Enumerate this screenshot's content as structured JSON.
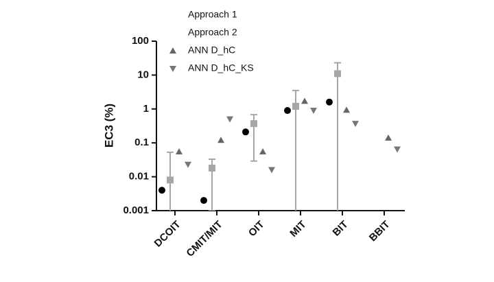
{
  "chart_data": {
    "type": "scatter",
    "y_label": "EC3  (%)",
    "categories": [
      "DCOIT",
      "CMIT/MIT",
      "OIT",
      "MIT",
      "BIT",
      "BBIT"
    ],
    "y_scale": "log",
    "ylim": [
      0.001,
      100
    ],
    "yticks": [
      0.001,
      0.01,
      0.1,
      1,
      10,
      100
    ],
    "legend": "top",
    "series": [
      {
        "name": "Approach 1",
        "color": "#000000",
        "marker": "circle",
        "values": [
          0.004,
          0.002,
          0.21,
          0.9,
          1.6,
          null
        ]
      },
      {
        "name": "Approach 2",
        "color": "#a6a6a6",
        "marker": "square",
        "values": [
          0.008,
          0.018,
          0.37,
          1.2,
          11,
          null
        ],
        "error_low": [
          0.0001,
          0.001,
          0.029,
          0.0001,
          0.0001,
          null
        ],
        "error_high": [
          0.053,
          0.033,
          0.68,
          3.5,
          23,
          null
        ]
      },
      {
        "name": "ANN D_hC",
        "color": "#666666",
        "marker": "triangle-up",
        "values": [
          0.055,
          0.12,
          0.055,
          1.7,
          0.93,
          0.14
        ]
      },
      {
        "name": "ANN D_hC_KS",
        "color": "#777777",
        "marker": "triangle-down",
        "values": [
          0.023,
          0.5,
          0.016,
          0.9,
          0.37,
          0.065
        ]
      }
    ]
  }
}
